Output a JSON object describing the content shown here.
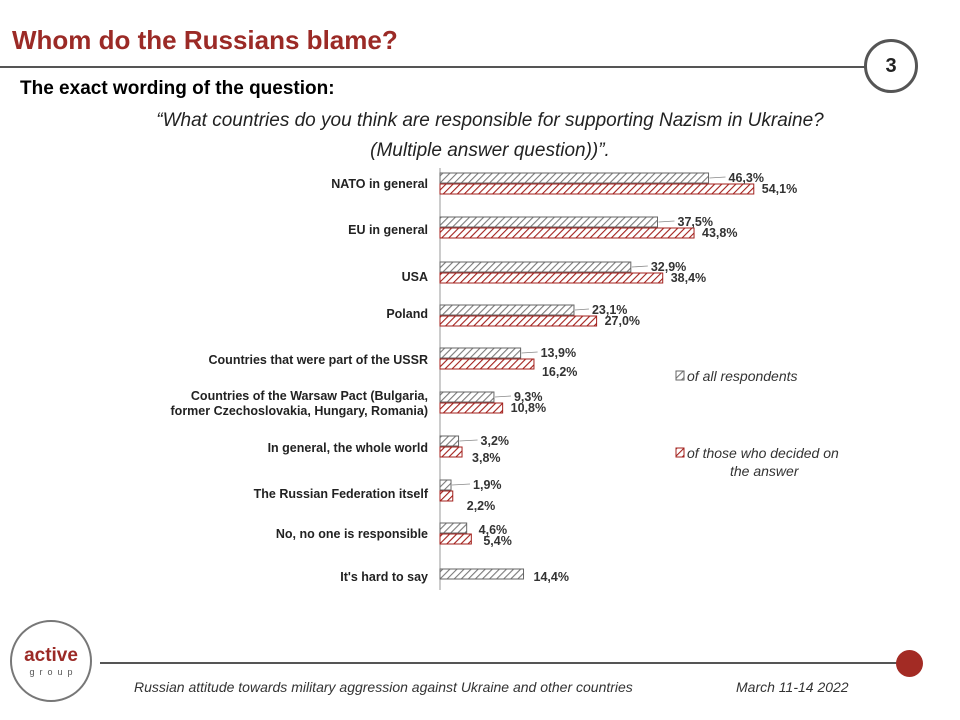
{
  "header": {
    "title": "Whom do the Russians blame?",
    "page_number": "3"
  },
  "question": {
    "heading": "The exact wording of the question:",
    "line1": "“What countries do you think are responsible for supporting Nazism in Ukraine?",
    "line2": "(Multiple answer question))”."
  },
  "footer": {
    "text": "Russian attitude towards military aggression against Ukraine and other countries",
    "date": "March 11-14 2022"
  },
  "logo": {
    "main": "active",
    "sub": "group"
  },
  "colors": {
    "accent": "#9b2a26",
    "series_all": "#808080",
    "series_decided": "#a3201c"
  },
  "chart_data": {
    "type": "bar",
    "orientation": "horizontal",
    "value_suffix": "%",
    "decimal_separator": ",",
    "categories": [
      "NATO in general",
      "EU in general",
      "USA",
      "Poland",
      "Countries that were part of the USSR",
      "Countries of the Warsaw Pact (Bulgaria, former Czechoslovakia, Hungary, Romania)",
      "In general, the whole world",
      "The Russian Federation itself",
      "No, no one is responsible",
      "It's hard to say"
    ],
    "series": [
      {
        "name": "of all respondents",
        "color": "#808080",
        "pattern": "diagonal-hatch",
        "values": [
          46.3,
          37.5,
          32.9,
          23.1,
          13.9,
          9.3,
          3.2,
          1.9,
          4.6,
          14.4
        ]
      },
      {
        "name": "of those who decided on the answer",
        "color": "#a3201c",
        "pattern": "diagonal-hatch",
        "values": [
          54.1,
          43.8,
          38.4,
          27.0,
          16.2,
          10.8,
          3.8,
          2.2,
          5.4,
          null
        ]
      }
    ],
    "xlim": [
      0,
      60
    ],
    "legend_position": "right"
  }
}
